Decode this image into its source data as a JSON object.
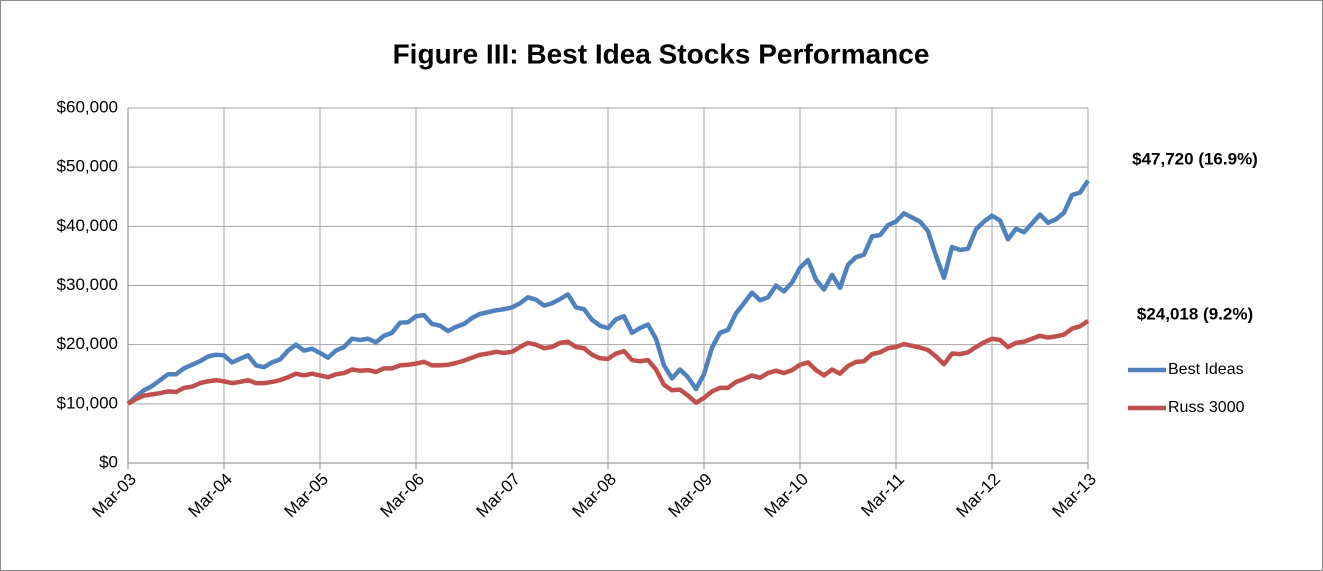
{
  "chart_data": {
    "type": "line",
    "title": "Figure III: Best Idea Stocks Performance",
    "categories": [
      "Mar-03",
      null,
      null,
      null,
      null,
      null,
      null,
      null,
      null,
      null,
      null,
      null,
      "Mar-04",
      null,
      null,
      null,
      null,
      null,
      null,
      null,
      null,
      null,
      null,
      null,
      "Mar-05",
      null,
      null,
      null,
      null,
      null,
      null,
      null,
      null,
      null,
      null,
      null,
      "Mar-06",
      null,
      null,
      null,
      null,
      null,
      null,
      null,
      null,
      null,
      null,
      null,
      "Mar-07",
      null,
      null,
      null,
      null,
      null,
      null,
      null,
      null,
      null,
      null,
      null,
      "Mar-08",
      null,
      null,
      null,
      null,
      null,
      null,
      null,
      null,
      null,
      null,
      null,
      "Mar-09",
      null,
      null,
      null,
      null,
      null,
      null,
      null,
      null,
      null,
      null,
      null,
      "Mar-10",
      null,
      null,
      null,
      null,
      null,
      null,
      null,
      null,
      null,
      null,
      null,
      "Mar-11",
      null,
      null,
      null,
      null,
      null,
      null,
      null,
      null,
      null,
      null,
      null,
      "Mar-12",
      null,
      null,
      null,
      null,
      null,
      null,
      null,
      null,
      null,
      null,
      null,
      "Mar-13"
    ],
    "series": [
      {
        "name": "Best Ideas",
        "color": "#4f81bd",
        "values": [
          10000,
          11200,
          12300,
          13000,
          14000,
          15000,
          15000,
          16000,
          16600,
          17200,
          18000,
          18300,
          18200,
          17000,
          17600,
          18200,
          16500,
          16200,
          17000,
          17500,
          19000,
          20000,
          19000,
          19300,
          18600,
          17800,
          19000,
          19600,
          21000,
          20800,
          21000,
          20400,
          21500,
          22000,
          23700,
          23800,
          24800,
          25000,
          23500,
          23200,
          22300,
          23000,
          23500,
          24500,
          25200,
          25500,
          25800,
          26000,
          26300,
          27000,
          28000,
          27600,
          26600,
          27000,
          27700,
          28500,
          26300,
          26000,
          24200,
          23200,
          22800,
          24300,
          24800,
          22000,
          22800,
          23400,
          21000,
          16500,
          14300,
          15800,
          14500,
          12500,
          15000,
          19500,
          22000,
          22500,
          25300,
          27000,
          28800,
          27500,
          28000,
          30000,
          29000,
          30500,
          33000,
          34300,
          31000,
          29300,
          31800,
          29600,
          33500,
          34800,
          35200,
          38300,
          38500,
          40200,
          40800,
          42200,
          41500,
          40800,
          39200,
          35000,
          31300,
          36500,
          36000,
          36200,
          39500,
          40800,
          41800,
          41000,
          37800,
          39600,
          39000,
          40500,
          42000,
          40600,
          41200,
          42300,
          45300,
          45700,
          47720
        ]
      },
      {
        "name": "Russ 3000",
        "color": "#c0504d",
        "values": [
          10000,
          10800,
          11400,
          11600,
          11800,
          12100,
          12000,
          12700,
          12900,
          13500,
          13800,
          14000,
          13800,
          13500,
          13700,
          14000,
          13500,
          13500,
          13700,
          14000,
          14500,
          15100,
          14800,
          15100,
          14800,
          14500,
          15000,
          15200,
          15800,
          15600,
          15700,
          15400,
          16000,
          16000,
          16500,
          16600,
          16800,
          17100,
          16500,
          16500,
          16600,
          16900,
          17300,
          17800,
          18300,
          18500,
          18800,
          18600,
          18800,
          19600,
          20300,
          20000,
          19400,
          19600,
          20300,
          20500,
          19600,
          19400,
          18300,
          17700,
          17600,
          18500,
          18900,
          17400,
          17200,
          17400,
          15800,
          13200,
          12300,
          12400,
          11400,
          10200,
          11000,
          12100,
          12700,
          12700,
          13700,
          14200,
          14800,
          14400,
          15200,
          15600,
          15200,
          15700,
          16600,
          17000,
          15700,
          14800,
          15800,
          15100,
          16400,
          17100,
          17200,
          18400,
          18700,
          19400,
          19600,
          20100,
          19800,
          19500,
          19100,
          18000,
          16700,
          18500,
          18400,
          18700,
          19600,
          20400,
          21000,
          20800,
          19600,
          20300,
          20500,
          21000,
          21500,
          21200,
          21400,
          21700,
          22700,
          23100,
          24018
        ]
      }
    ],
    "annotations": [
      "$47,720 (16.9%)",
      "$24,018 (9.2%)"
    ],
    "ylim": [
      0,
      60000
    ],
    "yticks": [
      {
        "value": 0,
        "label": "$0"
      },
      {
        "value": 10000,
        "label": "$10,000"
      },
      {
        "value": 20000,
        "label": "$20,000"
      },
      {
        "value": 30000,
        "label": "$30,000"
      },
      {
        "value": 40000,
        "label": "$40,000"
      },
      {
        "value": 50000,
        "label": "$50,000"
      },
      {
        "value": 60000,
        "label": "$60,000"
      }
    ],
    "grid": true,
    "legend": "right"
  }
}
